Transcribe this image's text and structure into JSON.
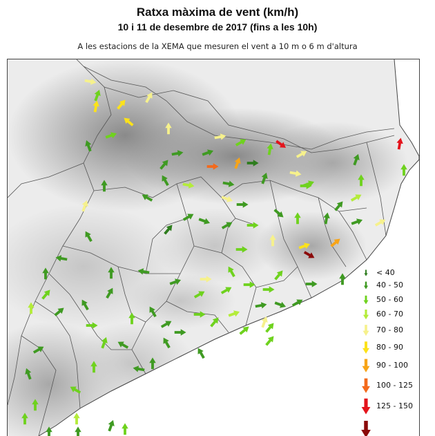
{
  "header": {
    "title": "Ratxa màxima de vent (km/h)",
    "subtitle": "10 i 11 de desembre de 2017 (fins a les 10h)",
    "note": "A les estacions de la XEMA que mesuren el vent a 10 m o 6 m d'altura"
  },
  "legend": {
    "items": [
      {
        "label": "< 40",
        "color": "#2e7d1e",
        "size": 0.55
      },
      {
        "label": "40 - 50",
        "color": "#3f9a22",
        "size": 0.65
      },
      {
        "label": "50 - 60",
        "color": "#6fd21e",
        "size": 0.75
      },
      {
        "label": "60 - 70",
        "color": "#b4ec3a",
        "size": 0.85
      },
      {
        "label": "70 - 80",
        "color": "#f6f18c",
        "size": 0.95
      },
      {
        "label": "80 - 90",
        "color": "#fce21a",
        "size": 1.05
      },
      {
        "label": "90 - 100",
        "color": "#f7a418",
        "size": 1.15
      },
      {
        "label": "100 - 125",
        "color": "#f36a1c",
        "size": 1.25
      },
      {
        "label": "125 - 150",
        "color": "#e4141c",
        "size": 1.35
      },
      {
        "label": "",
        "color": "#8b0a0a",
        "size": 1.45
      }
    ]
  },
  "colors": {
    "border": "#555555",
    "sea": "#ffffff",
    "relief_light": "#eeeeee",
    "relief_dark": "#8d8d8d"
  }
}
